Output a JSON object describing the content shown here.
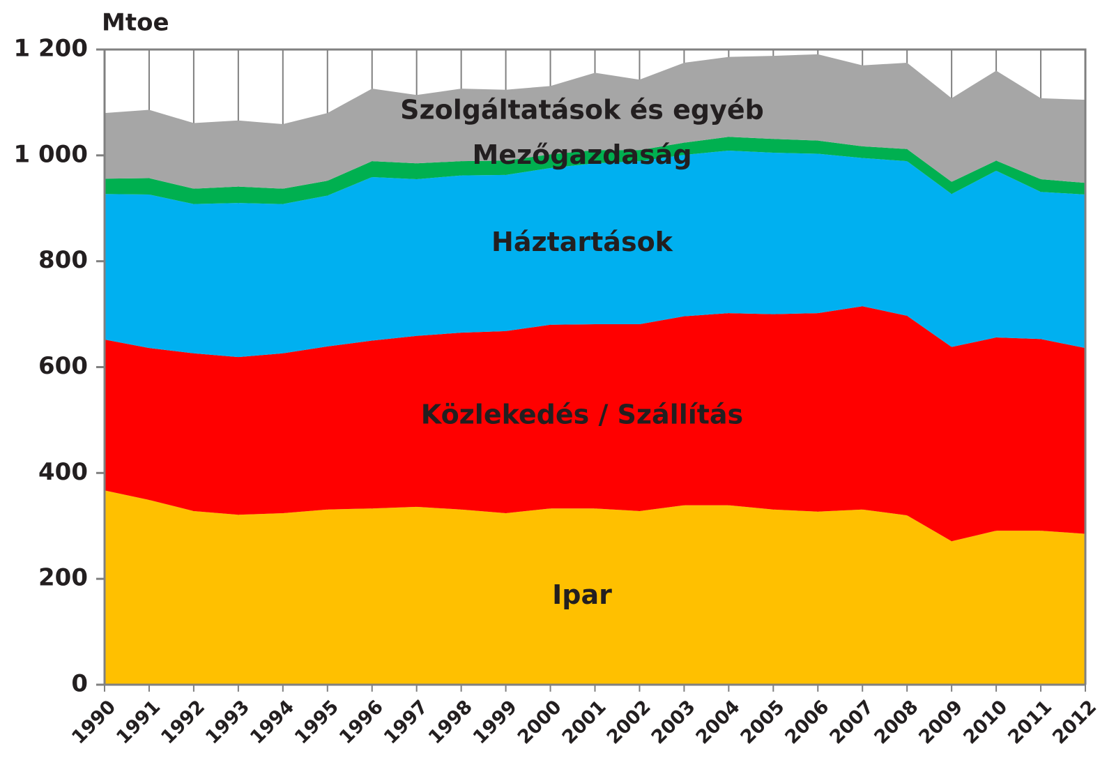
{
  "chart_data": {
    "type": "stacked_area",
    "y_label": "Mtoe",
    "categories": [
      "1990",
      "1991",
      "1992",
      "1993",
      "1994",
      "1995",
      "1996",
      "1997",
      "1998",
      "1999",
      "2000",
      "2001",
      "2002",
      "2003",
      "2004",
      "2005",
      "2006",
      "2007",
      "2008",
      "2009",
      "2010",
      "2011",
      "2012"
    ],
    "series": [
      {
        "name": "Ipar",
        "color": "#ffc000",
        "values": [
          367,
          349,
          328,
          321,
          324,
          331,
          333,
          336,
          331,
          324,
          333,
          333,
          328,
          339,
          339,
          331,
          327,
          331,
          320,
          271,
          291,
          291,
          285
        ]
      },
      {
        "name": "Közlekedés / Szállítás",
        "color": "#ff0000",
        "values": [
          285,
          287,
          298,
          298,
          302,
          308,
          317,
          323,
          334,
          344,
          347,
          348,
          353,
          357,
          363,
          369,
          375,
          384,
          377,
          367,
          365,
          362,
          351
        ]
      },
      {
        "name": "Háztartások",
        "color": "#00b0f0",
        "values": [
          275,
          290,
          282,
          291,
          282,
          285,
          309,
          296,
          297,
          295,
          296,
          304,
          308,
          305,
          307,
          305,
          301,
          280,
          292,
          289,
          315,
          278,
          290
        ]
      },
      {
        "name": "Mezőgazdaság",
        "color": "#00b050",
        "values": [
          29,
          31,
          29,
          31,
          29,
          28,
          30,
          30,
          27,
          27,
          26,
          25,
          21,
          23,
          26,
          26,
          25,
          22,
          23,
          23,
          19,
          24,
          22
        ]
      },
      {
        "name": "Szolgáltatások és egyéb",
        "color": "#a6a6a6",
        "values": [
          124,
          129,
          124,
          125,
          122,
          128,
          137,
          129,
          137,
          134,
          129,
          146,
          133,
          151,
          151,
          157,
          163,
          153,
          163,
          158,
          170,
          153,
          157
        ]
      }
    ],
    "ylim": [
      0,
      1200
    ],
    "yticks": [
      0,
      200,
      400,
      600,
      800,
      {
        "value": 1000,
        "label": "1 000"
      },
      {
        "value": 1200,
        "label": "1 200"
      }
    ],
    "grid": "vertical"
  }
}
